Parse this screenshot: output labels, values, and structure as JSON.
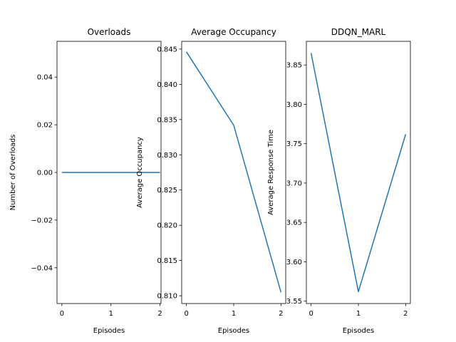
{
  "chart_data": [
    {
      "type": "line",
      "title": "Overloads",
      "xlabel": "Episodes",
      "ylabel": "Number of Overloads",
      "x": [
        0,
        1,
        2
      ],
      "series": [
        {
          "values": [
            0,
            0,
            0
          ]
        }
      ],
      "xlim": [
        -0.1,
        2.02
      ],
      "ylim": [
        -0.055,
        0.055
      ],
      "xticks": [
        0,
        1,
        2
      ],
      "xtick_labels": [
        "0",
        "1",
        "2"
      ],
      "yticks": [
        -0.04,
        -0.02,
        0.0,
        0.02,
        0.04
      ],
      "ytick_labels": [
        "−0.04",
        "−0.02",
        "0.00",
        "0.02",
        "0.04"
      ],
      "line_color": "#1f77b4",
      "grid": false
    },
    {
      "type": "line",
      "title": "Average Occupancy",
      "xlabel": "Episodes",
      "ylabel": "Average Occupancy",
      "x": [
        0,
        1,
        2
      ],
      "series": [
        {
          "values": [
            0.8446,
            0.8342,
            0.8105
          ]
        }
      ],
      "xlim": [
        -0.1,
        2.1
      ],
      "ylim": [
        0.8089,
        0.8461
      ],
      "xticks": [
        0,
        1,
        2
      ],
      "xtick_labels": [
        "0",
        "1",
        "2"
      ],
      "yticks": [
        0.81,
        0.815,
        0.82,
        0.825,
        0.83,
        0.835,
        0.84,
        0.845
      ],
      "ytick_labels": [
        "0.810",
        "0.815",
        "0.820",
        "0.825",
        "0.830",
        "0.835",
        "0.840",
        "0.845"
      ],
      "line_color": "#1f77b4",
      "grid": false
    },
    {
      "type": "line",
      "title": "DDQN_MARL",
      "xlabel": "Episodes",
      "ylabel": "Average Response Time",
      "x": [
        0,
        1,
        2
      ],
      "series": [
        {
          "values": [
            3.865,
            3.562,
            3.762
          ]
        }
      ],
      "xlim": [
        -0.1,
        2.1
      ],
      "ylim": [
        3.547,
        3.88
      ],
      "xticks": [
        0,
        1,
        2
      ],
      "xtick_labels": [
        "0",
        "1",
        "2"
      ],
      "yticks": [
        3.55,
        3.6,
        3.65,
        3.7,
        3.75,
        3.8,
        3.85
      ],
      "ytick_labels": [
        "3.55",
        "3.60",
        "3.65",
        "3.70",
        "3.75",
        "3.80",
        "3.85"
      ],
      "line_color": "#1f77b4",
      "grid": false
    }
  ]
}
